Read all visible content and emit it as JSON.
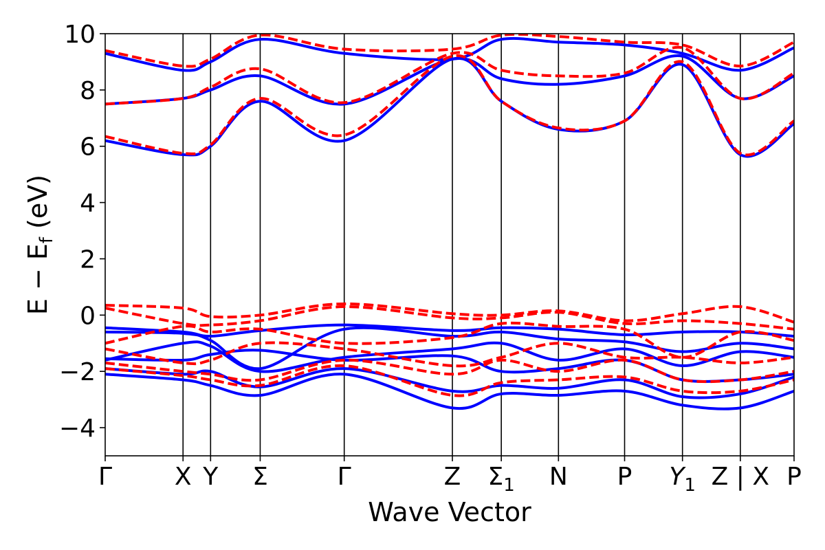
{
  "chart_data": {
    "type": "line",
    "title": "",
    "xlabel": "Wave Vector",
    "ylabel_parts": {
      "main": "E − E",
      "subscript": "f",
      "suffix": " (eV)"
    },
    "ylim": [
      -5,
      10
    ],
    "yticks": [
      -4,
      -2,
      0,
      2,
      4,
      6,
      8,
      10
    ],
    "xlim": [
      0,
      1
    ],
    "high_symmetry_points": [
      {
        "label": "Γ",
        "pos": 0.0,
        "sub": "",
        "italic": false
      },
      {
        "label": "X",
        "pos": 0.113,
        "sub": "",
        "italic": false
      },
      {
        "label": "Y",
        "pos": 0.153,
        "sub": "",
        "italic": false
      },
      {
        "label": "Σ",
        "pos": 0.225,
        "sub": "",
        "italic": false
      },
      {
        "label": "Γ",
        "pos": 0.347,
        "sub": "",
        "italic": false
      },
      {
        "label": "Z",
        "pos": 0.504,
        "sub": "",
        "italic": false
      },
      {
        "label": "Σ",
        "pos": 0.575,
        "sub": "1",
        "italic": false
      },
      {
        "label": "N",
        "pos": 0.658,
        "sub": "",
        "italic": false
      },
      {
        "label": "P",
        "pos": 0.754,
        "sub": "",
        "italic": false
      },
      {
        "label": "Y",
        "pos": 0.838,
        "sub": "1",
        "italic": true
      },
      {
        "label": "Z | X",
        "pos": 0.922,
        "sub": "",
        "italic": false
      },
      {
        "label": "P",
        "pos": 1.0,
        "sub": "",
        "italic": false
      }
    ],
    "series_styles": {
      "blue": {
        "name": "solid bands",
        "color": "#0000ff",
        "dash": ""
      },
      "red": {
        "name": "dashed bands",
        "color": "#ff0000",
        "dash": "14 6"
      }
    },
    "series": [
      {
        "name": "valence-blue-1",
        "style": "blue",
        "x": [
          0.0,
          0.113,
          0.153,
          0.225,
          0.347,
          0.504,
          0.575,
          0.658,
          0.754,
          0.838,
          0.922,
          1.0
        ],
        "y": [
          -0.45,
          -0.6,
          -0.75,
          -0.55,
          -0.35,
          -0.55,
          -0.45,
          -0.5,
          -0.7,
          -0.6,
          -0.6,
          -0.75
        ]
      },
      {
        "name": "valence-blue-2",
        "style": "blue",
        "x": [
          0.0,
          0.113,
          0.153,
          0.225,
          0.347,
          0.504,
          0.575,
          0.658,
          0.754,
          0.838,
          0.922,
          1.0
        ],
        "y": [
          -0.6,
          -0.65,
          -0.9,
          -1.9,
          -0.5,
          -0.75,
          -0.6,
          -0.85,
          -0.95,
          -1.3,
          -1.0,
          -1.2
        ]
      },
      {
        "name": "valence-blue-3",
        "style": "blue",
        "x": [
          0.0,
          0.113,
          0.153,
          0.225,
          0.347,
          0.504,
          0.575,
          0.658,
          0.754,
          0.838,
          0.922,
          1.0
        ],
        "y": [
          -1.6,
          -1.0,
          -1.1,
          -2.0,
          -1.5,
          -1.2,
          -1.0,
          -1.6,
          -1.2,
          -1.8,
          -1.3,
          -1.5
        ]
      },
      {
        "name": "valence-blue-4",
        "style": "blue",
        "x": [
          0.0,
          0.113,
          0.153,
          0.225,
          0.347,
          0.504,
          0.575,
          0.658,
          0.754,
          0.838,
          0.922,
          1.0
        ],
        "y": [
          -1.55,
          -1.6,
          -1.4,
          -1.25,
          -1.6,
          -1.45,
          -2.0,
          -1.9,
          -1.6,
          -2.3,
          -2.3,
          -2.1
        ]
      },
      {
        "name": "valence-blue-5",
        "style": "blue",
        "x": [
          0.0,
          0.113,
          0.153,
          0.225,
          0.347,
          0.504,
          0.575,
          0.658,
          0.754,
          0.838,
          0.922,
          1.0
        ],
        "y": [
          -1.9,
          -2.1,
          -2.0,
          -2.55,
          -1.9,
          -2.7,
          -2.5,
          -2.6,
          -2.3,
          -2.9,
          -2.8,
          -2.2
        ]
      },
      {
        "name": "valence-blue-6",
        "style": "blue",
        "x": [
          0.0,
          0.113,
          0.153,
          0.225,
          0.347,
          0.504,
          0.575,
          0.658,
          0.754,
          0.838,
          0.922,
          1.0
        ],
        "y": [
          -2.1,
          -2.3,
          -2.5,
          -2.85,
          -2.1,
          -3.3,
          -2.8,
          -2.85,
          -2.7,
          -3.2,
          -3.3,
          -2.7
        ]
      },
      {
        "name": "valence-red-1",
        "style": "red",
        "x": [
          0.0,
          0.113,
          0.153,
          0.225,
          0.347,
          0.504,
          0.575,
          0.658,
          0.754,
          0.838,
          0.922,
          1.0
        ],
        "y": [
          0.35,
          0.25,
          -0.05,
          0.0,
          0.4,
          0.05,
          0.0,
          0.15,
          -0.2,
          0.05,
          0.3,
          -0.25
        ]
      },
      {
        "name": "valence-red-2",
        "style": "red",
        "x": [
          0.0,
          0.113,
          0.153,
          0.225,
          0.347,
          0.504,
          0.575,
          0.658,
          0.754,
          0.838,
          0.922,
          1.0
        ],
        "y": [
          0.25,
          -0.3,
          -0.35,
          -0.2,
          0.3,
          -0.1,
          -0.1,
          0.1,
          -0.3,
          -0.2,
          -0.3,
          -0.5
        ]
      },
      {
        "name": "valence-red-3",
        "style": "red",
        "x": [
          0.0,
          0.113,
          0.153,
          0.225,
          0.347,
          0.504,
          0.575,
          0.658,
          0.754,
          0.838,
          0.922,
          1.0
        ],
        "y": [
          -1.0,
          -0.4,
          -0.6,
          -0.5,
          -1.0,
          -0.8,
          -0.3,
          -0.4,
          -0.5,
          -1.5,
          -0.6,
          -0.9
        ]
      },
      {
        "name": "valence-red-4",
        "style": "red",
        "x": [
          0.0,
          0.113,
          0.153,
          0.225,
          0.347,
          0.504,
          0.575,
          0.658,
          0.754,
          0.838,
          0.922,
          1.0
        ],
        "y": [
          -1.2,
          -1.7,
          -1.6,
          -1.0,
          -1.2,
          -1.8,
          -1.5,
          -1.0,
          -1.5,
          -1.5,
          -1.7,
          -1.5
        ]
      },
      {
        "name": "valence-red-5",
        "style": "red",
        "x": [
          0.0,
          0.113,
          0.153,
          0.225,
          0.347,
          0.504,
          0.575,
          0.658,
          0.754,
          0.838,
          0.922,
          1.0
        ],
        "y": [
          -1.7,
          -2.0,
          -2.1,
          -2.3,
          -1.6,
          -2.1,
          -1.6,
          -2.0,
          -1.6,
          -2.3,
          -2.3,
          -2.0
        ]
      },
      {
        "name": "valence-red-6",
        "style": "red",
        "x": [
          0.0,
          0.113,
          0.153,
          0.225,
          0.347,
          0.504,
          0.575,
          0.658,
          0.754,
          0.838,
          0.922,
          1.0
        ],
        "y": [
          -1.9,
          -2.15,
          -2.3,
          -2.5,
          -1.8,
          -2.85,
          -2.4,
          -2.3,
          -2.2,
          -2.7,
          -2.7,
          -2.3
        ]
      },
      {
        "name": "conduction-blue-1",
        "style": "blue",
        "x": [
          0.0,
          0.113,
          0.153,
          0.225,
          0.347,
          0.504,
          0.575,
          0.658,
          0.754,
          0.838,
          0.922,
          1.0
        ],
        "y": [
          6.2,
          5.7,
          6.0,
          7.6,
          6.2,
          9.1,
          7.6,
          6.6,
          6.9,
          8.9,
          5.7,
          6.8
        ]
      },
      {
        "name": "conduction-blue-2",
        "style": "blue",
        "x": [
          0.0,
          0.113,
          0.153,
          0.225,
          0.347,
          0.504,
          0.575,
          0.658,
          0.754,
          0.838,
          0.922,
          1.0
        ],
        "y": [
          7.5,
          7.7,
          8.0,
          8.5,
          7.5,
          9.1,
          8.4,
          8.2,
          8.5,
          9.2,
          7.7,
          8.5
        ]
      },
      {
        "name": "conduction-blue-3",
        "style": "blue",
        "x": [
          0.0,
          0.113,
          0.153,
          0.225,
          0.347,
          0.504,
          0.575,
          0.658,
          0.754,
          0.838,
          0.922,
          1.0
        ],
        "y": [
          9.3,
          8.7,
          9.0,
          9.8,
          9.3,
          9.1,
          9.8,
          9.7,
          9.6,
          9.3,
          8.7,
          9.5
        ]
      },
      {
        "name": "conduction-red-1",
        "style": "red",
        "x": [
          0.0,
          0.113,
          0.153,
          0.225,
          0.347,
          0.504,
          0.575,
          0.658,
          0.754,
          0.838,
          0.922,
          1.0
        ],
        "y": [
          6.35,
          5.75,
          6.05,
          7.7,
          6.4,
          9.2,
          7.6,
          6.65,
          6.9,
          9.0,
          5.75,
          6.9
        ]
      },
      {
        "name": "conduction-red-2",
        "style": "red",
        "x": [
          0.0,
          0.113,
          0.153,
          0.225,
          0.347,
          0.504,
          0.575,
          0.658,
          0.754,
          0.838,
          0.922,
          1.0
        ],
        "y": [
          7.5,
          7.7,
          8.1,
          8.75,
          7.55,
          9.3,
          8.7,
          8.5,
          8.6,
          9.5,
          7.7,
          8.6
        ]
      },
      {
        "name": "conduction-red-3",
        "style": "red",
        "x": [
          0.0,
          0.113,
          0.153,
          0.225,
          0.347,
          0.504,
          0.575,
          0.658,
          0.754,
          0.838,
          0.922,
          1.0
        ],
        "y": [
          9.4,
          8.85,
          9.1,
          9.95,
          9.45,
          9.45,
          9.95,
          9.9,
          9.7,
          9.6,
          8.85,
          9.7
        ]
      }
    ]
  }
}
